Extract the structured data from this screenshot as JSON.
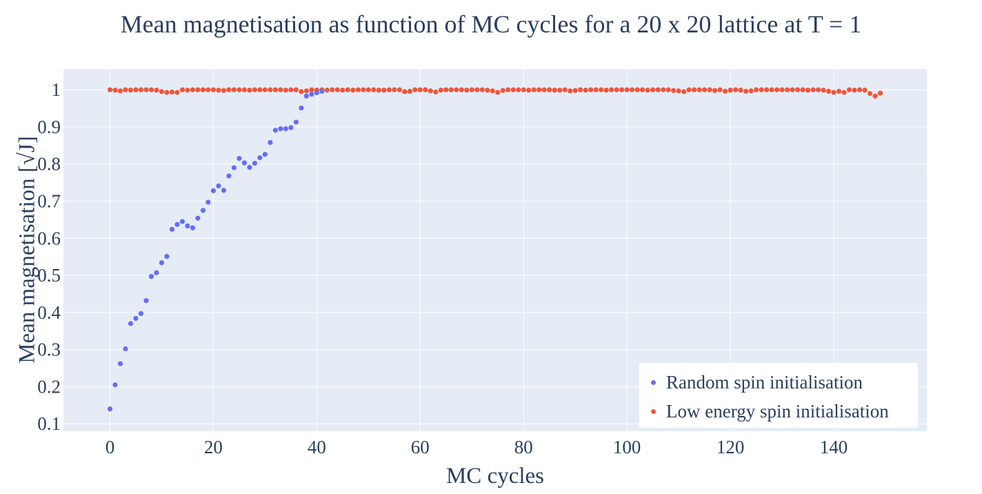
{
  "chart_data": {
    "type": "scatter",
    "title": "Mean magnetisation as function of MC cycles for a 20 x 20 lattice at T = 1",
    "xlabel": "MC cycles",
    "ylabel": "Mean magnetisation [√J]",
    "xlim": [
      -9,
      158
    ],
    "ylim": [
      0.08,
      1.056
    ],
    "xticks": [
      0,
      20,
      40,
      60,
      80,
      100,
      120,
      140
    ],
    "yticks": [
      0.1,
      0.2,
      0.3,
      0.4,
      0.5,
      0.6,
      0.7,
      0.8,
      0.9,
      1
    ],
    "grid": true,
    "legend_position": "bottom-right",
    "plot_background": "#e5ecf6",
    "series": [
      {
        "name": "Random spin initialisation",
        "color": "#636efa",
        "x": [
          0,
          1,
          2,
          3,
          4,
          5,
          6,
          7,
          8,
          9,
          10,
          11,
          12,
          13,
          14,
          15,
          16,
          17,
          18,
          19,
          20,
          21,
          22,
          23,
          24,
          25,
          26,
          27,
          28,
          29,
          30,
          31,
          32,
          33,
          34,
          35,
          36,
          37,
          38,
          39,
          40,
          41
        ],
        "y": [
          0.14,
          0.205,
          0.262,
          0.302,
          0.37,
          0.384,
          0.397,
          0.432,
          0.497,
          0.507,
          0.534,
          0.551,
          0.624,
          0.637,
          0.645,
          0.633,
          0.628,
          0.654,
          0.675,
          0.697,
          0.728,
          0.741,
          0.729,
          0.768,
          0.79,
          0.815,
          0.803,
          0.791,
          0.802,
          0.817,
          0.826,
          0.858,
          0.891,
          0.895,
          0.895,
          0.898,
          0.913,
          0.951,
          0.983,
          0.988,
          0.992,
          0.996
        ]
      },
      {
        "name": "Low energy spin initialisation",
        "color": "#ef553b",
        "x": [
          0,
          1,
          2,
          3,
          4,
          5,
          6,
          7,
          8,
          9,
          10,
          11,
          12,
          13,
          14,
          15,
          16,
          17,
          18,
          19,
          20,
          21,
          22,
          23,
          24,
          25,
          26,
          27,
          28,
          29,
          30,
          31,
          32,
          33,
          34,
          35,
          36,
          37,
          38,
          39,
          40,
          41,
          42,
          43,
          44,
          45,
          46,
          47,
          48,
          49,
          50,
          51,
          52,
          53,
          54,
          55,
          56,
          57,
          58,
          59,
          60,
          61,
          62,
          63,
          64,
          65,
          66,
          67,
          68,
          69,
          70,
          71,
          72,
          73,
          74,
          75,
          76,
          77,
          78,
          79,
          80,
          81,
          82,
          83,
          84,
          85,
          86,
          87,
          88,
          89,
          90,
          91,
          92,
          93,
          94,
          95,
          96,
          97,
          98,
          99,
          100,
          101,
          102,
          103,
          104,
          105,
          106,
          107,
          108,
          109,
          110,
          111,
          112,
          113,
          114,
          115,
          116,
          117,
          118,
          119,
          120,
          121,
          122,
          123,
          124,
          125,
          126,
          127,
          128,
          129,
          130,
          131,
          132,
          133,
          134,
          135,
          136,
          137,
          138,
          139,
          140,
          141,
          142,
          143,
          144,
          145,
          146,
          147,
          148,
          149
        ],
        "y": [
          1.0,
          0.999,
          0.997,
          1.0,
          0.999,
          1.0,
          1.0,
          1.0,
          1.0,
          0.999,
          0.995,
          0.993,
          0.994,
          0.993,
          1.0,
          0.999,
          1.0,
          1.0,
          1.0,
          1.0,
          1.0,
          0.999,
          0.998,
          1.0,
          1.0,
          1.0,
          1.0,
          0.999,
          1.0,
          1.0,
          1.0,
          1.0,
          1.0,
          1.0,
          0.999,
          1.0,
          1.0,
          0.995,
          0.997,
          1.0,
          0.999,
          1.0,
          0.999,
          1.0,
          1.0,
          0.999,
          1.0,
          0.999,
          1.0,
          1.0,
          1.0,
          1.0,
          0.999,
          0.999,
          1.0,
          1.0,
          1.0,
          0.995,
          0.996,
          1.0,
          1.0,
          1.0,
          0.997,
          0.994,
          0.999,
          1.0,
          1.0,
          1.0,
          1.0,
          0.999,
          1.0,
          1.0,
          1.0,
          0.999,
          0.997,
          0.993,
          0.998,
          1.0,
          1.0,
          1.0,
          1.0,
          0.999,
          1.0,
          1.0,
          1.0,
          1.0,
          0.999,
          0.999,
          1.0,
          0.997,
          0.998,
          1.0,
          0.999,
          1.0,
          1.0,
          1.0,
          0.999,
          1.0,
          1.0,
          1.0,
          1.0,
          1.0,
          1.0,
          1.0,
          0.999,
          1.0,
          1.0,
          1.0,
          1.0,
          0.998,
          0.997,
          0.995,
          1.0,
          1.0,
          1.0,
          1.0,
          1.0,
          0.998,
          1.0,
          0.996,
          0.999,
          1.0,
          0.999,
          0.996,
          0.997,
          1.0,
          1.0,
          1.0,
          1.0,
          1.0,
          1.0,
          1.0,
          1.0,
          1.0,
          1.0,
          0.999,
          1.0,
          1.0,
          0.999,
          0.996,
          0.993,
          0.996,
          0.993,
          1.0,
          0.999,
          1.0,
          0.999,
          0.99,
          0.983,
          0.991
        ]
      }
    ]
  }
}
